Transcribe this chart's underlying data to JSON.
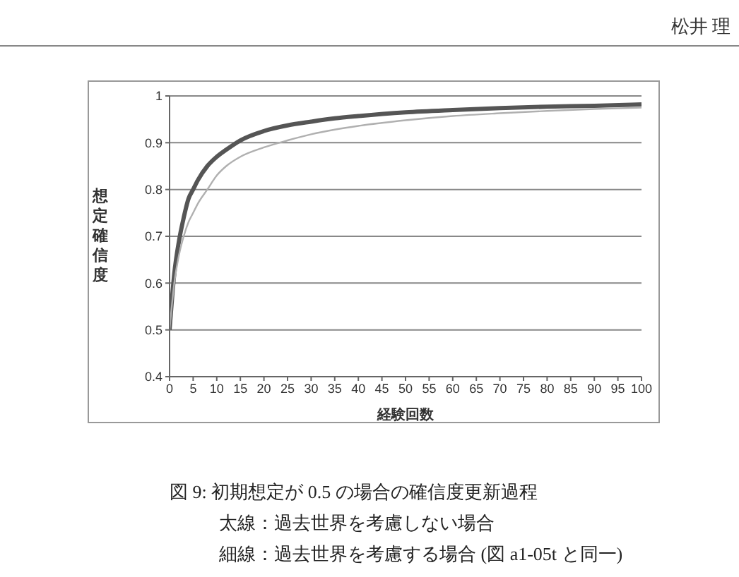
{
  "chart_data": {
    "type": "line",
    "title": "図 9: 初期想定が 0.5 の場合の確信度更新過程",
    "xlabel": "経験回数",
    "ylabel": "想定確信度",
    "annotations": [
      "松井 理",
      "太線：過去世界を考慮しない場合",
      "細線：過去世界を考慮する場合 (図 a1-05t と同一)"
    ],
    "x": [
      0,
      1,
      2,
      3,
      4,
      5,
      6,
      8,
      10,
      12,
      15,
      20,
      25,
      30,
      35,
      40,
      50,
      60,
      70,
      80,
      90,
      100
    ],
    "series": [
      {
        "color": "#555555",
        "values": [
          0.5,
          0.62,
          0.69,
          0.74,
          0.78,
          0.8,
          0.82,
          0.85,
          0.87,
          0.885,
          0.905,
          0.925,
          0.937,
          0.945,
          0.952,
          0.957,
          0.965,
          0.97,
          0.974,
          0.977,
          0.979,
          0.982
        ]
      },
      {
        "color": "#b0b0b0",
        "values": [
          0.5,
          0.6,
          0.66,
          0.7,
          0.73,
          0.75,
          0.77,
          0.8,
          0.83,
          0.85,
          0.87,
          0.89,
          0.905,
          0.918,
          0.928,
          0.936,
          0.948,
          0.957,
          0.963,
          0.968,
          0.972,
          0.975
        ]
      }
    ],
    "xlim": [
      0,
      100
    ],
    "xticks": [
      0,
      5,
      10,
      15,
      20,
      25,
      30,
      35,
      40,
      45,
      50,
      55,
      60,
      65,
      70,
      75,
      80,
      85,
      90,
      95,
      100
    ],
    "ylim": [
      0.4,
      1
    ],
    "yticks": [
      0.4,
      0.5,
      0.6,
      0.7,
      0.8,
      0.9,
      1
    ],
    "grid": "y",
    "legend": false,
    "marker": "none",
    "line_style": "solid"
  }
}
